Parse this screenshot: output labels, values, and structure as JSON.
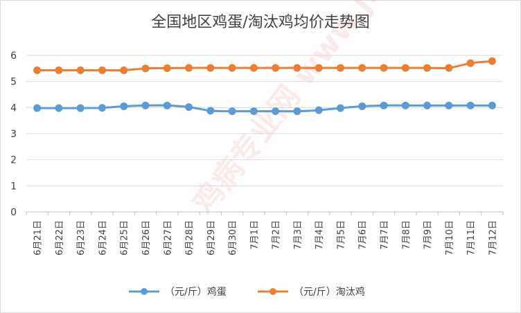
{
  "chart_data": {
    "type": "line",
    "title": "全国地区鸡蛋/淘汰鸡均价走势图",
    "categories": [
      "6月21日",
      "6月22日",
      "6月23日",
      "6月24日",
      "6月25日",
      "6月26日",
      "6月27日",
      "6月28日",
      "6月29日",
      "6月30日",
      "7月1日",
      "7月2日",
      "7月3日",
      "7月4日",
      "7月5日",
      "7月6日",
      "7月7日",
      "7月8日",
      "7月9日",
      "7月10日",
      "7月11日",
      "7月12日"
    ],
    "series": [
      {
        "name": "（元/斤）鸡蛋",
        "color": "#5b9bd5",
        "values": [
          3.98,
          3.98,
          3.98,
          3.99,
          4.05,
          4.08,
          4.08,
          4.02,
          3.88,
          3.86,
          3.86,
          3.86,
          3.86,
          3.9,
          3.98,
          4.05,
          4.08,
          4.08,
          4.08,
          4.08,
          4.08,
          4.08
        ]
      },
      {
        "name": "（元/斤）淘汰鸡",
        "color": "#ed7d31",
        "values": [
          5.43,
          5.43,
          5.43,
          5.43,
          5.43,
          5.5,
          5.51,
          5.52,
          5.52,
          5.52,
          5.52,
          5.52,
          5.52,
          5.52,
          5.52,
          5.52,
          5.52,
          5.52,
          5.52,
          5.52,
          5.7,
          5.78
        ]
      }
    ],
    "ylim": [
      0,
      6
    ],
    "yticks": [
      "0",
      "1",
      "2",
      "3",
      "4",
      "5",
      "6"
    ],
    "grid": true,
    "legend": "bottom"
  },
  "watermark": "鸡病专业网 www.jbzyw.com"
}
